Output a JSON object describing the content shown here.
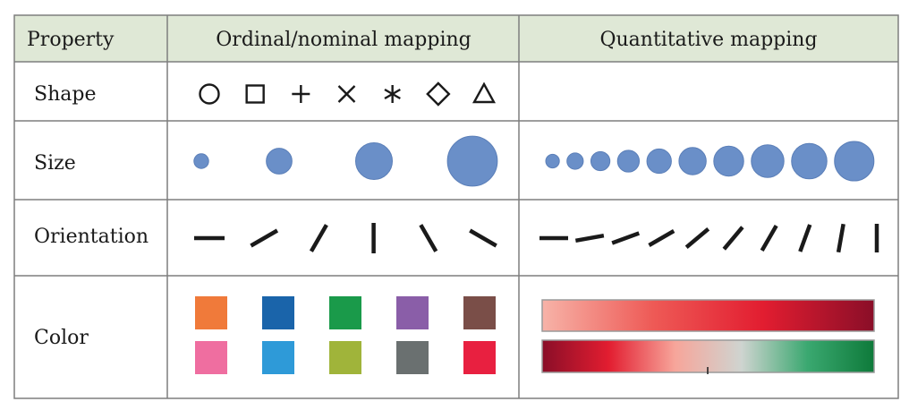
{
  "table": {
    "headers": [
      "Property",
      "Ordinal/nominal mapping",
      "Quantitative mapping"
    ],
    "rows": [
      {
        "label": "Shape"
      },
      {
        "label": "Size"
      },
      {
        "label": "Orientation"
      },
      {
        "label": "Color"
      }
    ]
  },
  "colors": {
    "header_background": "#dfe8d6",
    "grid_line": "#7f7f7f",
    "mark": "#1a1a1a",
    "circle_fill": "#6a8fc8",
    "circle_stroke": "#5b7fb8"
  },
  "shape_row": {
    "ordinal": [
      "circle-icon",
      "square-icon",
      "plus-icon",
      "cross-icon",
      "asterisk-icon",
      "diamond-icon",
      "triangle-icon"
    ]
  },
  "size_row": {
    "ordinal_radius_scale": [
      1,
      1.75,
      2.5,
      3.4
    ],
    "quantitative_radius_scale": [
      1,
      1.2,
      1.4,
      1.6,
      1.8,
      2.0,
      2.2,
      2.4,
      2.6,
      2.9
    ]
  },
  "orientation_row": {
    "ordinal_angles_deg": [
      0,
      30,
      60,
      90,
      120,
      150
    ],
    "quantitative_angles_deg": [
      0,
      10,
      20,
      30,
      40,
      50,
      60,
      70,
      80,
      90
    ]
  },
  "color_row": {
    "ordinal_top": [
      "#f07a3a",
      "#1a64aa",
      "#1a9a4a",
      "#8a5ea8",
      "#7a4e48"
    ],
    "ordinal_bottom": [
      "#ef6ea0",
      "#2e9ad8",
      "#a0b43a",
      "#6a7070",
      "#e82040"
    ],
    "sequential_gradient": [
      "#f7b3a8",
      "#ee5a56",
      "#e21d30",
      "#8a0e28"
    ],
    "diverging_gradient": [
      "#8a0e28",
      "#e21d30",
      "#f7a59a",
      "#cfd4d0",
      "#3aa870",
      "#0e7a3a"
    ]
  }
}
